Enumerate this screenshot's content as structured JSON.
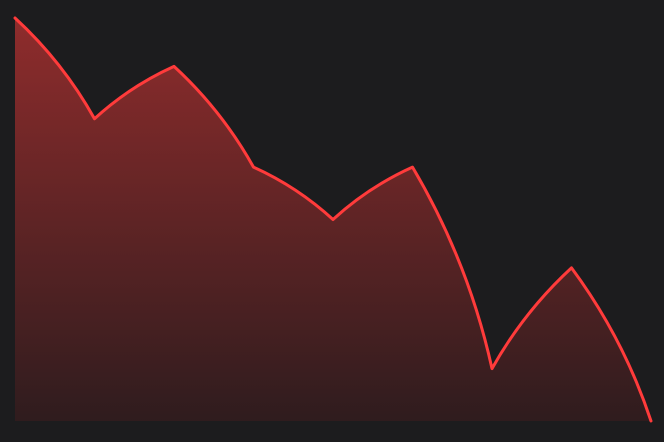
{
  "chart_data": {
    "type": "area",
    "title": "",
    "xlabel": "",
    "ylabel": "",
    "x": [
      0,
      1,
      2,
      3,
      4,
      5,
      6,
      7,
      8
    ],
    "series": [
      {
        "values": [
          100,
          75,
          88,
          63,
          50,
          63,
          13,
          38,
          0
        ]
      }
    ],
    "ylim": [
      0,
      100
    ],
    "grid": false,
    "legend": "none",
    "colors": {
      "background": "#1c1c1e",
      "line": "#ff3b3b",
      "fill_top": "#8f2c2c",
      "fill_bottom": "#2f1c1e"
    }
  }
}
